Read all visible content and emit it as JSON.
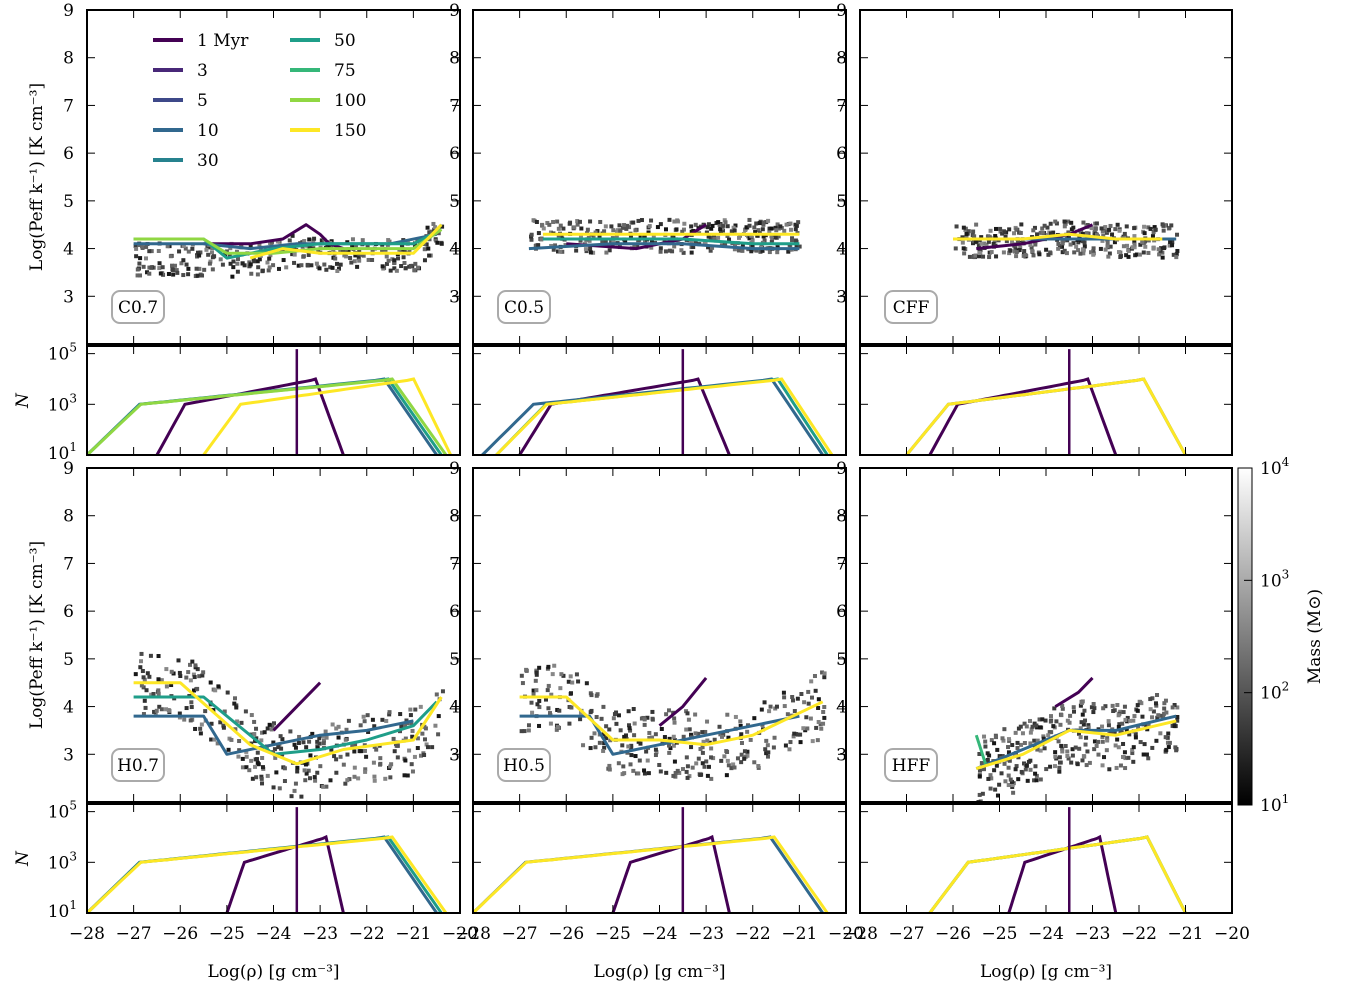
{
  "figure": {
    "legend_title": "",
    "colorbar": {
      "label": "Mass (M⊙)",
      "ticks": [
        "10^1",
        "10^2",
        "10^3",
        "10^4"
      ],
      "scale": "log",
      "range": [
        10,
        10000
      ]
    }
  },
  "legend": {
    "entries": [
      {
        "label": "1 Myr",
        "color": "#440154"
      },
      {
        "label": "3",
        "color": "#482878"
      },
      {
        "label": "5",
        "color": "#3e4989"
      },
      {
        "label": "10",
        "color": "#31688e"
      },
      {
        "label": "30",
        "color": "#26828e"
      },
      {
        "label": "50",
        "color": "#1f9e89"
      },
      {
        "label": "75",
        "color": "#35b779"
      },
      {
        "label": "100",
        "color": "#90d743"
      },
      {
        "label": "150",
        "color": "#fde725"
      }
    ]
  },
  "chart_data": [
    {
      "type": "heatmap",
      "panel": "C0.7",
      "xlim": [
        -28,
        -20
      ],
      "ylim": [
        2,
        9
      ],
      "xlabel": "",
      "ylabel": "Log(P_eff k^-1) [K cm^-3]",
      "yticks": [
        3,
        4,
        5,
        6,
        7,
        8,
        9
      ],
      "series": [
        {
          "name": "1 Myr",
          "x": [
            -25.5,
            -24.5,
            -23.8,
            -23.3,
            -23.0,
            -22.8,
            -22.5
          ],
          "y": [
            4.1,
            4.1,
            4.2,
            4.5,
            4.3,
            4.1,
            4.0
          ]
        },
        {
          "name": "10",
          "x": [
            -27.0,
            -25.5,
            -24.5,
            -23.5,
            -22.5,
            -21.5,
            -20.5
          ],
          "y": [
            4.1,
            4.1,
            4.0,
            4.1,
            4.1,
            4.1,
            4.3
          ]
        },
        {
          "name": "50",
          "x": [
            -27.0,
            -25.5,
            -25.0,
            -24.0,
            -23.0,
            -22.0,
            -21.0,
            -20.4
          ],
          "y": [
            4.2,
            4.2,
            3.8,
            4.0,
            4.1,
            4.1,
            4.1,
            4.4
          ]
        },
        {
          "name": "100",
          "x": [
            -27.0,
            -25.5,
            -25.0,
            -24.0,
            -23.0,
            -22.0,
            -21.0,
            -20.4
          ],
          "y": [
            4.2,
            4.2,
            3.9,
            3.9,
            4.0,
            4.0,
            4.0,
            4.4
          ]
        },
        {
          "name": "150",
          "x": [
            -24.5,
            -23.8,
            -23.0,
            -22.0,
            -21.0,
            -20.4
          ],
          "y": [
            3.8,
            4.0,
            3.9,
            3.9,
            3.9,
            4.5
          ]
        }
      ]
    },
    {
      "type": "heatmap",
      "panel": "C0.5",
      "xlim": [
        -28,
        -20
      ],
      "ylim": [
        2,
        9
      ],
      "series": [
        {
          "name": "1 Myr",
          "x": [
            -26.0,
            -24.5,
            -23.5,
            -23.0
          ],
          "y": [
            4.1,
            4.0,
            4.2,
            4.5
          ]
        },
        {
          "name": "10",
          "x": [
            -26.8,
            -25.0,
            -23.5,
            -22.0,
            -21.0
          ],
          "y": [
            4.0,
            4.1,
            4.1,
            4.0,
            4.0
          ]
        },
        {
          "name": "50",
          "x": [
            -26.5,
            -25.0,
            -23.5,
            -22.0,
            -21.0
          ],
          "y": [
            4.2,
            4.2,
            4.2,
            4.1,
            4.1
          ]
        },
        {
          "name": "150",
          "x": [
            -26.5,
            -25.0,
            -23.5,
            -22.0,
            -21.0
          ],
          "y": [
            4.3,
            4.3,
            4.3,
            4.3,
            4.3
          ]
        }
      ]
    },
    {
      "type": "heatmap",
      "panel": "CFF",
      "xlim": [
        -28,
        -20
      ],
      "ylim": [
        2,
        9
      ],
      "series": [
        {
          "name": "1 Myr",
          "x": [
            -25.5,
            -24.5,
            -23.5,
            -23.0
          ],
          "y": [
            4.0,
            4.1,
            4.3,
            4.5
          ]
        },
        {
          "name": "10",
          "x": [
            -26.0,
            -24.5,
            -23.0,
            -22.0,
            -21.2
          ],
          "y": [
            4.2,
            4.2,
            4.2,
            4.2,
            4.2
          ]
        },
        {
          "name": "150",
          "x": [
            -26.0,
            -24.5,
            -23.5,
            -22.5,
            -21.5
          ],
          "y": [
            4.2,
            4.2,
            4.3,
            4.2,
            4.2
          ]
        }
      ]
    },
    {
      "type": "line",
      "panel": "C0.7 N",
      "xlim": [
        -28,
        -20
      ],
      "ylim": [
        10,
        200000
      ],
      "yscale": "log",
      "ylabel": "N",
      "yticks": [
        "10^1",
        "10^3",
        "10^5"
      ]
    },
    {
      "type": "line",
      "panel": "C0.5 N",
      "xlim": [
        -28,
        -20
      ],
      "ylim": [
        10,
        200000
      ],
      "yscale": "log"
    },
    {
      "type": "line",
      "panel": "CFF N",
      "xlim": [
        -28,
        -20
      ],
      "ylim": [
        10,
        200000
      ],
      "yscale": "log"
    },
    {
      "type": "heatmap",
      "panel": "H0.7",
      "xlim": [
        -28,
        -20
      ],
      "ylim": [
        2,
        9
      ],
      "ylabel": "Log(P_eff k^-1) [K cm^-3]",
      "series": [
        {
          "name": "1 Myr",
          "x": [
            -24.0,
            -23.5,
            -23.0
          ],
          "y": [
            3.5,
            4.0,
            4.5
          ]
        },
        {
          "name": "10",
          "x": [
            -27.0,
            -25.5,
            -25.0,
            -24.0,
            -23.0,
            -22.0,
            -21.0
          ],
          "y": [
            3.8,
            3.8,
            3.0,
            3.2,
            3.4,
            3.5,
            3.7
          ]
        },
        {
          "name": "50",
          "x": [
            -27.0,
            -25.5,
            -24.0,
            -23.0,
            -22.0,
            -21.0,
            -20.5
          ],
          "y": [
            4.2,
            4.2,
            3.0,
            3.1,
            3.3,
            3.6,
            4.1
          ]
        },
        {
          "name": "150",
          "x": [
            -27.0,
            -26.0,
            -24.5,
            -23.5,
            -22.5,
            -21.0,
            -20.4
          ],
          "y": [
            4.5,
            4.5,
            3.2,
            2.8,
            3.1,
            3.3,
            4.2
          ]
        }
      ]
    },
    {
      "type": "heatmap",
      "panel": "H0.5",
      "xlim": [
        -28,
        -20
      ],
      "ylim": [
        2,
        9
      ],
      "series": [
        {
          "name": "1 Myr",
          "x": [
            -24.0,
            -23.5,
            -23.0
          ],
          "y": [
            3.6,
            4.0,
            4.6
          ]
        },
        {
          "name": "10",
          "x": [
            -27.0,
            -25.5,
            -25.0,
            -24.0,
            -23.0,
            -22.0,
            -21.0
          ],
          "y": [
            3.8,
            3.8,
            3.0,
            3.2,
            3.4,
            3.6,
            3.8
          ]
        },
        {
          "name": "150",
          "x": [
            -27.0,
            -26.0,
            -25.0,
            -24.0,
            -23.0,
            -22.0,
            -20.5
          ],
          "y": [
            4.2,
            4.2,
            3.3,
            3.3,
            3.2,
            3.4,
            4.1
          ]
        }
      ]
    },
    {
      "type": "heatmap",
      "panel": "HFF",
      "xlim": [
        -28,
        -20
      ],
      "ylim": [
        2,
        9
      ],
      "series": [
        {
          "name": "1 Myr",
          "x": [
            -23.8,
            -23.3,
            -23.0
          ],
          "y": [
            4.0,
            4.3,
            4.6
          ]
        },
        {
          "name": "10",
          "x": [
            -25.5,
            -24.5,
            -23.5,
            -22.5,
            -21.2
          ],
          "y": [
            2.7,
            3.1,
            3.5,
            3.5,
            3.8
          ]
        },
        {
          "name": "75",
          "x": [
            -25.5,
            -25.3
          ],
          "y": [
            3.4,
            2.8
          ]
        },
        {
          "name": "150",
          "x": [
            -25.5,
            -24.5,
            -23.5,
            -22.5,
            -21.2
          ],
          "y": [
            2.7,
            3.0,
            3.5,
            3.4,
            3.7
          ]
        }
      ]
    },
    {
      "type": "line",
      "panel": "H0.7 N",
      "xlim": [
        -28,
        -20
      ],
      "ylim": [
        10,
        200000
      ],
      "yscale": "log",
      "ylabel": "N",
      "yticks": [
        "10^1",
        "10^3",
        "10^5"
      ],
      "xlabel": "Log(ρ) [g cm^-3]"
    },
    {
      "type": "line",
      "panel": "H0.5 N",
      "xlim": [
        -28,
        -20
      ],
      "ylim": [
        10,
        200000
      ],
      "yscale": "log",
      "xlabel": "Log(ρ) [g cm^-3]"
    },
    {
      "type": "line",
      "panel": "HFF N",
      "xlim": [
        -28,
        -20
      ],
      "ylim": [
        10,
        200000
      ],
      "yscale": "log",
      "xlabel": "Log(ρ) [g cm^-3]"
    }
  ],
  "panels": {
    "labels": [
      "C0.7",
      "C0.5",
      "CFF",
      "H0.7",
      "H0.5",
      "HFF"
    ],
    "xticks": [
      "−28",
      "−27",
      "−26",
      "−25",
      "−24",
      "−23",
      "−22",
      "−21",
      "−20"
    ],
    "xlabel": "Log(ρ) [g cm⁻³]"
  }
}
